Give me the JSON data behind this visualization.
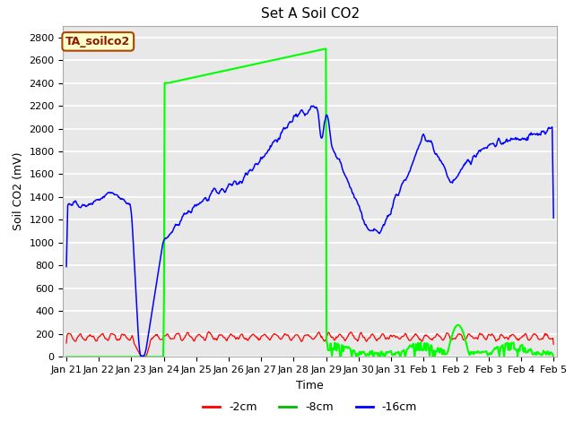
{
  "title": "Set A Soil CO2",
  "ylabel": "Soil CO2 (mV)",
  "xlabel": "Time",
  "ylim": [
    0,
    2900
  ],
  "bg_color": "#e8e8e8",
  "grid_color": "white",
  "line_red": "#ff0000",
  "line_green": "#00ff00",
  "line_blue": "#0000ff",
  "legend_entries": [
    "-2cm",
    "-8cm",
    "-16cm"
  ],
  "legend_colors": [
    "#ff0000",
    "#00bb00",
    "#0000ff"
  ],
  "annotation_label": "TA_soilco2",
  "annotation_bg": "#ffffcc",
  "annotation_border": "#aa4400",
  "xtick_labels": [
    "Jan 21",
    "Jan 22",
    "Jan 23",
    "Jan 24",
    "Jan 25",
    "Jan 26",
    "Jan 27",
    "Jan 28",
    "Jan 29",
    "Jan 30",
    "Jan 31",
    "Feb 1",
    "Feb 2",
    "Feb 3",
    "Feb 4",
    "Feb 5"
  ],
  "title_fontsize": 11,
  "axis_fontsize": 9,
  "tick_fontsize": 8
}
